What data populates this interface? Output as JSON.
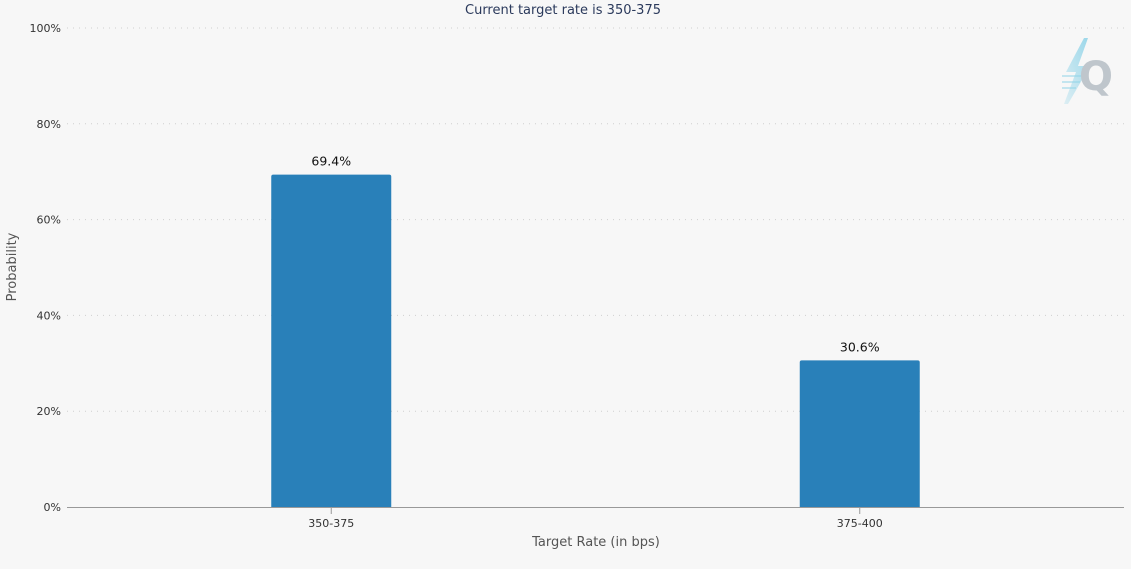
{
  "colors": {
    "bar": "#2980b9",
    "background": "#f7f7f7",
    "logo_gradient_start": "#8fd3e8",
    "logo_letter": "#bfc6cc"
  },
  "logo": {
    "icon": "q-logo-icon",
    "letter": "Q"
  },
  "chart_data": {
    "type": "bar",
    "title": "Current target rate is 350-375",
    "xlabel": "Target Rate (in bps)",
    "ylabel": "Probability",
    "categories": [
      "350-375",
      "375-400"
    ],
    "values": [
      69.4,
      30.6
    ],
    "data_labels": [
      "69.4%",
      "30.6%"
    ],
    "ylim": [
      0,
      100
    ],
    "yticks": [
      0,
      20,
      40,
      60,
      80,
      100
    ],
    "ytick_labels": [
      "0%",
      "20%",
      "40%",
      "60%",
      "80%",
      "100%"
    ],
    "grid": true,
    "legend": "none"
  }
}
